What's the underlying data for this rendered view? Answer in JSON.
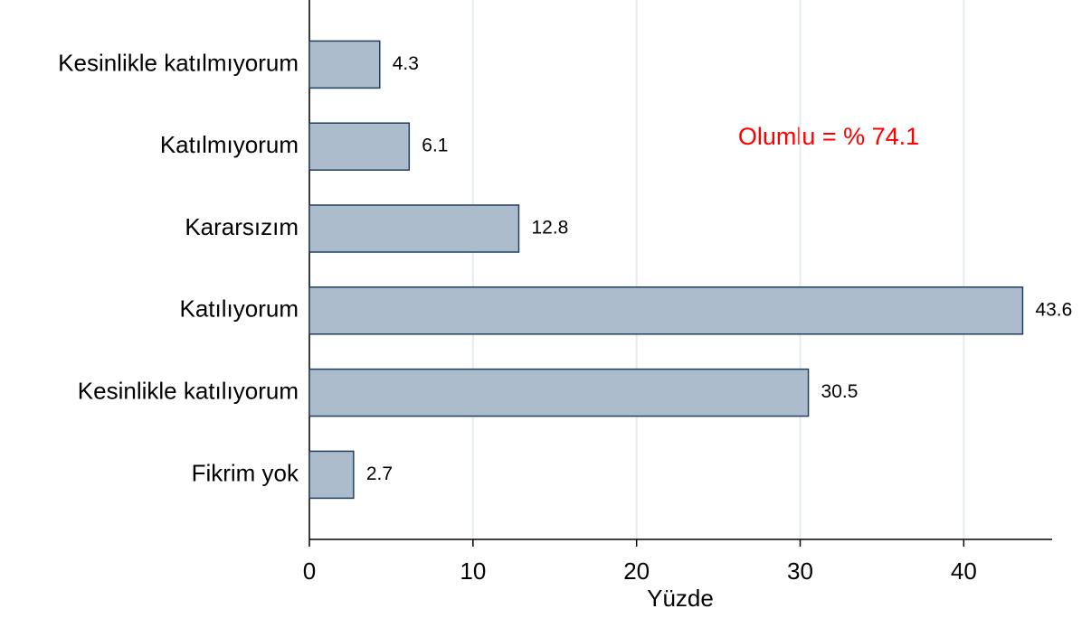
{
  "chart_data": {
    "type": "hbar",
    "categories": [
      "Kesinlikle katılmıyorum",
      "Katılmıyorum",
      "Kararsızım",
      "Katılıyorum",
      "Kesinlikle katılıyorum",
      "Fikrim yok"
    ],
    "values": [
      4.3,
      6.1,
      12.8,
      43.6,
      30.5,
      2.7
    ],
    "color": "#adbccc",
    "edge_color": "#1f3f5f",
    "xlabel": "Yüzde",
    "annotation": "Olumlu = % 74.1",
    "annotation_color": "#ff0000",
    "xlim": [
      0,
      45.4
    ],
    "xticks": [
      0,
      10,
      20,
      30,
      40
    ],
    "grid": true,
    "grid_color": "#e3ecef"
  }
}
